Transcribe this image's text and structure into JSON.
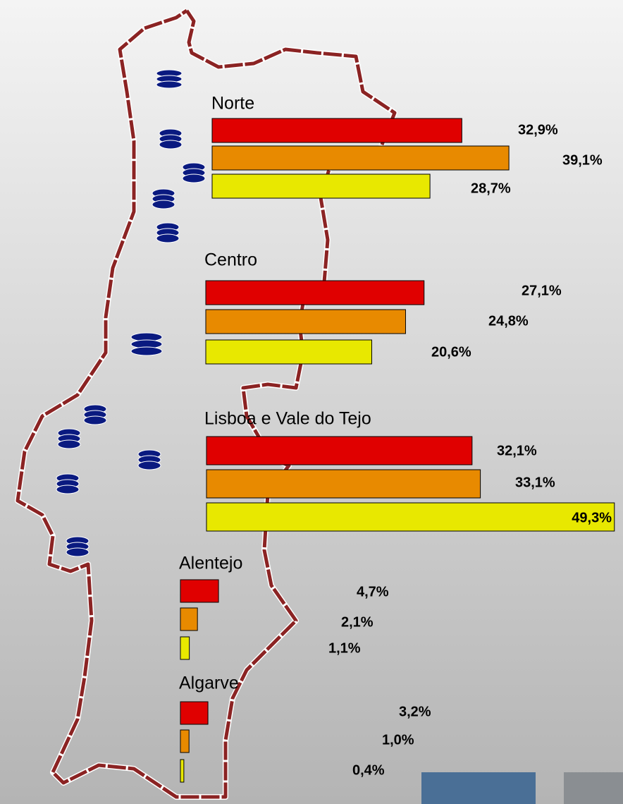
{
  "chart_data": [
    {
      "type": "bar",
      "title": "Norte",
      "values": [
        32.9,
        39.1,
        28.7
      ],
      "value_labels": [
        "32,9%",
        "39,1%",
        "28,7%"
      ],
      "colors": [
        "#e00000",
        "#e88a00",
        "#e8e800"
      ]
    },
    {
      "type": "bar",
      "title": "Centro",
      "values": [
        27.1,
        24.8,
        20.6
      ],
      "value_labels": [
        "27,1%",
        "24,8%",
        "20,6%"
      ],
      "colors": [
        "#e00000",
        "#e88a00",
        "#e8e800"
      ]
    },
    {
      "type": "bar",
      "title": "Lisboa e Vale do Tejo",
      "values": [
        32.1,
        33.1,
        49.3
      ],
      "value_labels": [
        "32,1%",
        "33,1%",
        "49,3%"
      ],
      "colors": [
        "#e00000",
        "#e88a00",
        "#e8e800"
      ]
    },
    {
      "type": "bar",
      "title": "Alentejo",
      "values": [
        4.7,
        2.1,
        1.1
      ],
      "value_labels": [
        "4,7%",
        "2,1%",
        "1,1%"
      ],
      "colors": [
        "#e00000",
        "#e88a00",
        "#e8e800"
      ]
    },
    {
      "type": "bar",
      "title": "Algarve",
      "values": [
        3.2,
        1.0,
        0.4
      ],
      "value_labels": [
        "3,2%",
        "1,0%",
        "0,4%"
      ],
      "colors": [
        "#e00000",
        "#e88a00",
        "#e8e800"
      ]
    }
  ]
}
